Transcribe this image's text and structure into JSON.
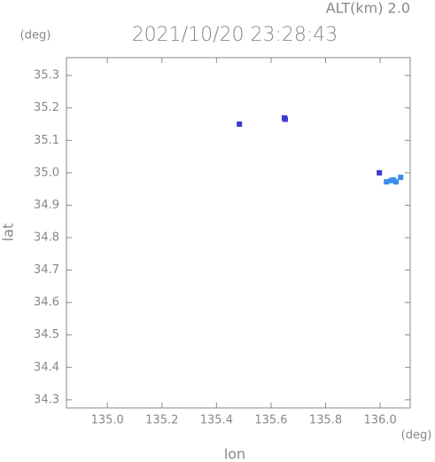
{
  "chart_data": {
    "type": "scatter",
    "title": "2021/10/20 23:28:43",
    "annotation": "ALT(km) 2.0",
    "x_label": "lon",
    "y_label": "lat",
    "x_unit": "(deg)",
    "y_unit": "(deg)",
    "xlim": [
      134.85,
      136.11
    ],
    "ylim": [
      34.275,
      35.355
    ],
    "xticks": [
      {
        "value": 135.0,
        "label": "135.0"
      },
      135.2,
      135.4,
      135.6,
      135.8,
      {
        "value": 136.0,
        "label": "136.0"
      }
    ],
    "yticks": [
      34.3,
      34.4,
      34.5,
      34.6,
      34.7,
      34.8,
      34.9,
      {
        "value": 35.0,
        "label": "35.0"
      },
      35.1,
      35.2,
      35.3
    ],
    "series": [
      {
        "color": "#3a3ad0",
        "x": [
          135.484,
          135.649,
          135.652,
          135.997
        ],
        "y": [
          35.15,
          35.169,
          35.165,
          35.0
        ]
      },
      {
        "color": "#3b8de8",
        "x": [
          136.023,
          136.04,
          136.049,
          136.058,
          136.075
        ],
        "y": [
          34.972,
          34.976,
          34.978,
          34.972,
          34.986
        ]
      }
    ]
  }
}
